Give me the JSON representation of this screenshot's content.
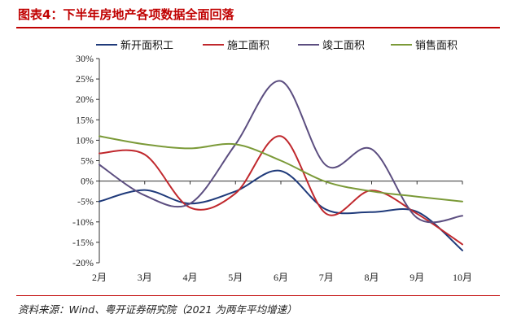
{
  "header": {
    "title": "图表4：下半年房地产各项数据全面回落"
  },
  "footer": {
    "source": "资料来源：Wind、粤开证券研究院（2021 为两年平均增速）"
  },
  "chart_data": {
    "type": "line",
    "title": "",
    "xlabel": "",
    "ylabel": "",
    "categories": [
      "2月",
      "3月",
      "4月",
      "5月",
      "6月",
      "7月",
      "8月",
      "9月",
      "10月"
    ],
    "ylim": [
      -20,
      30
    ],
    "yticks": [
      30,
      25,
      20,
      15,
      10,
      5,
      0,
      -5,
      -10,
      -15,
      -20
    ],
    "ytick_labels": [
      "30%",
      "25%",
      "20%",
      "15%",
      "10%",
      "5%",
      "0%",
      "-5%",
      "-10%",
      "-15%",
      "-20%"
    ],
    "grid": false,
    "legend_position": "top",
    "series": [
      {
        "name": "新开面积工",
        "color": "#1f3a7a",
        "values": [
          -5.0,
          -2.2,
          -5.5,
          -2.5,
          2.5,
          -7.0,
          -7.6,
          -7.5,
          -17.0
        ]
      },
      {
        "name": "施工面积",
        "color": "#c0282d",
        "values": [
          6.8,
          6.5,
          -6.5,
          -3.0,
          11.0,
          -8.0,
          -2.3,
          -8.0,
          -15.5
        ]
      },
      {
        "name": "竣工面积",
        "color": "#5c4e80",
        "values": [
          4.0,
          -3.5,
          -5.5,
          9.0,
          24.5,
          3.8,
          7.8,
          -9.0,
          -8.5
        ]
      },
      {
        "name": "销售面积",
        "color": "#7b9a38",
        "values": [
          11.0,
          9.0,
          8.0,
          9.0,
          5.0,
          -0.2,
          -2.5,
          -3.8,
          -5.0
        ]
      }
    ]
  }
}
